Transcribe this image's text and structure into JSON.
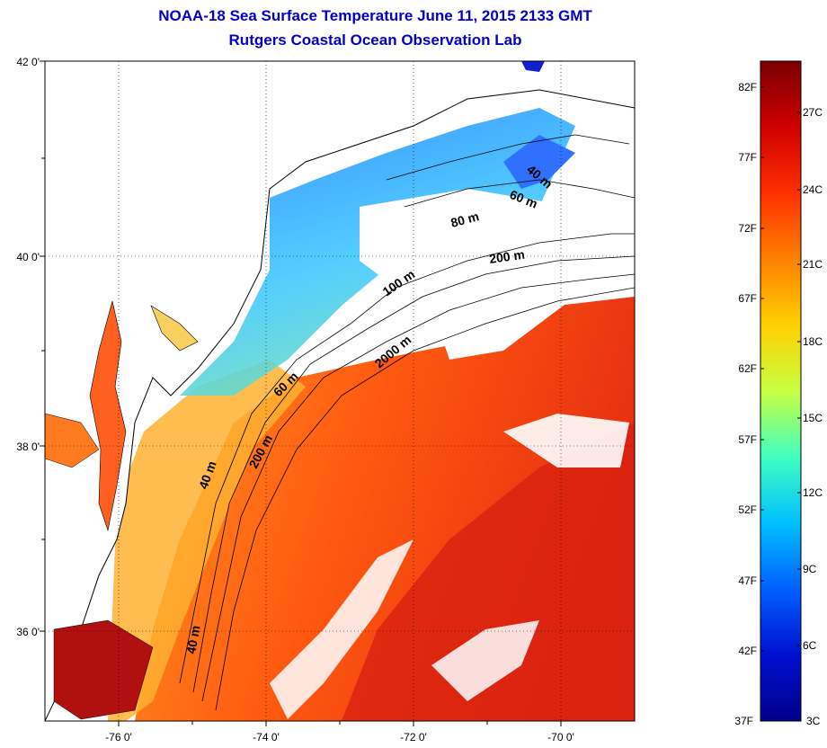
{
  "header": {
    "title": "NOAA-18 Sea Surface Temperature June 11, 2015 2133 GMT",
    "subtitle": "Rutgers Coastal Ocean Observation Lab"
  },
  "map": {
    "lat_ticks": [
      "42 0'",
      "40 0'",
      "38 0'",
      "36 0'"
    ],
    "lon_ticks": [
      "-76 0'",
      "-74 0'",
      "-72 0'",
      "-70 0'"
    ],
    "lat_range": [
      35,
      42
    ],
    "lon_range": [
      -77,
      -69
    ],
    "contour_labels": [
      "40 m",
      "60 m",
      "80 m",
      "200 m",
      "100 m",
      "2000 m",
      "60 m",
      "200 m",
      "40 m",
      "40 m"
    ]
  },
  "colorbar": {
    "fahrenheit_labels": [
      "82F",
      "77F",
      "72F",
      "67F",
      "62F",
      "57F",
      "52F",
      "47F",
      "42F",
      "37F"
    ],
    "celsius_labels": [
      "27C",
      "24C",
      "21C",
      "18C",
      "15C",
      "12C",
      "9C",
      "6C",
      "3C"
    ],
    "colors": [
      "#7a0000",
      "#d00000",
      "#ff3000",
      "#ff8000",
      "#ffd000",
      "#c8ff40",
      "#40ffc0",
      "#00c0ff",
      "#0060ff",
      "#0010d0",
      "#00008a"
    ]
  }
}
